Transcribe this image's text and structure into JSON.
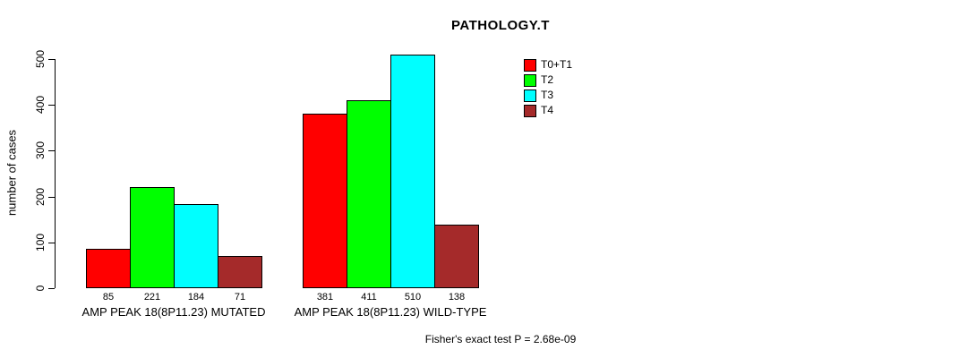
{
  "chart_data": {
    "type": "bar",
    "title": "PATHOLOGY.T",
    "xlabel": "",
    "ylabel": "number of cases",
    "ylim": [
      0,
      500
    ],
    "yticks": [
      0,
      100,
      200,
      300,
      400,
      500
    ],
    "grid": false,
    "legend_position": "top-right-outside",
    "bar_value_labels_shown": true,
    "categories": [
      "AMP PEAK 18(8P11.23) MUTATED",
      "AMP PEAK 18(8P11.23) WILD-TYPE"
    ],
    "series": [
      {
        "name": "T0+T1",
        "color": "#FF0000",
        "values": [
          85,
          381
        ]
      },
      {
        "name": "T2",
        "color": "#00FF00",
        "values": [
          221,
          411
        ]
      },
      {
        "name": "T3",
        "color": "#00FFFF",
        "values": [
          184,
          510
        ]
      },
      {
        "name": "T4",
        "color": "#A52A2A",
        "values": [
          71,
          138
        ]
      }
    ]
  },
  "footer": {
    "stat_text": "Fisher's exact test P = 2.68e-09"
  }
}
